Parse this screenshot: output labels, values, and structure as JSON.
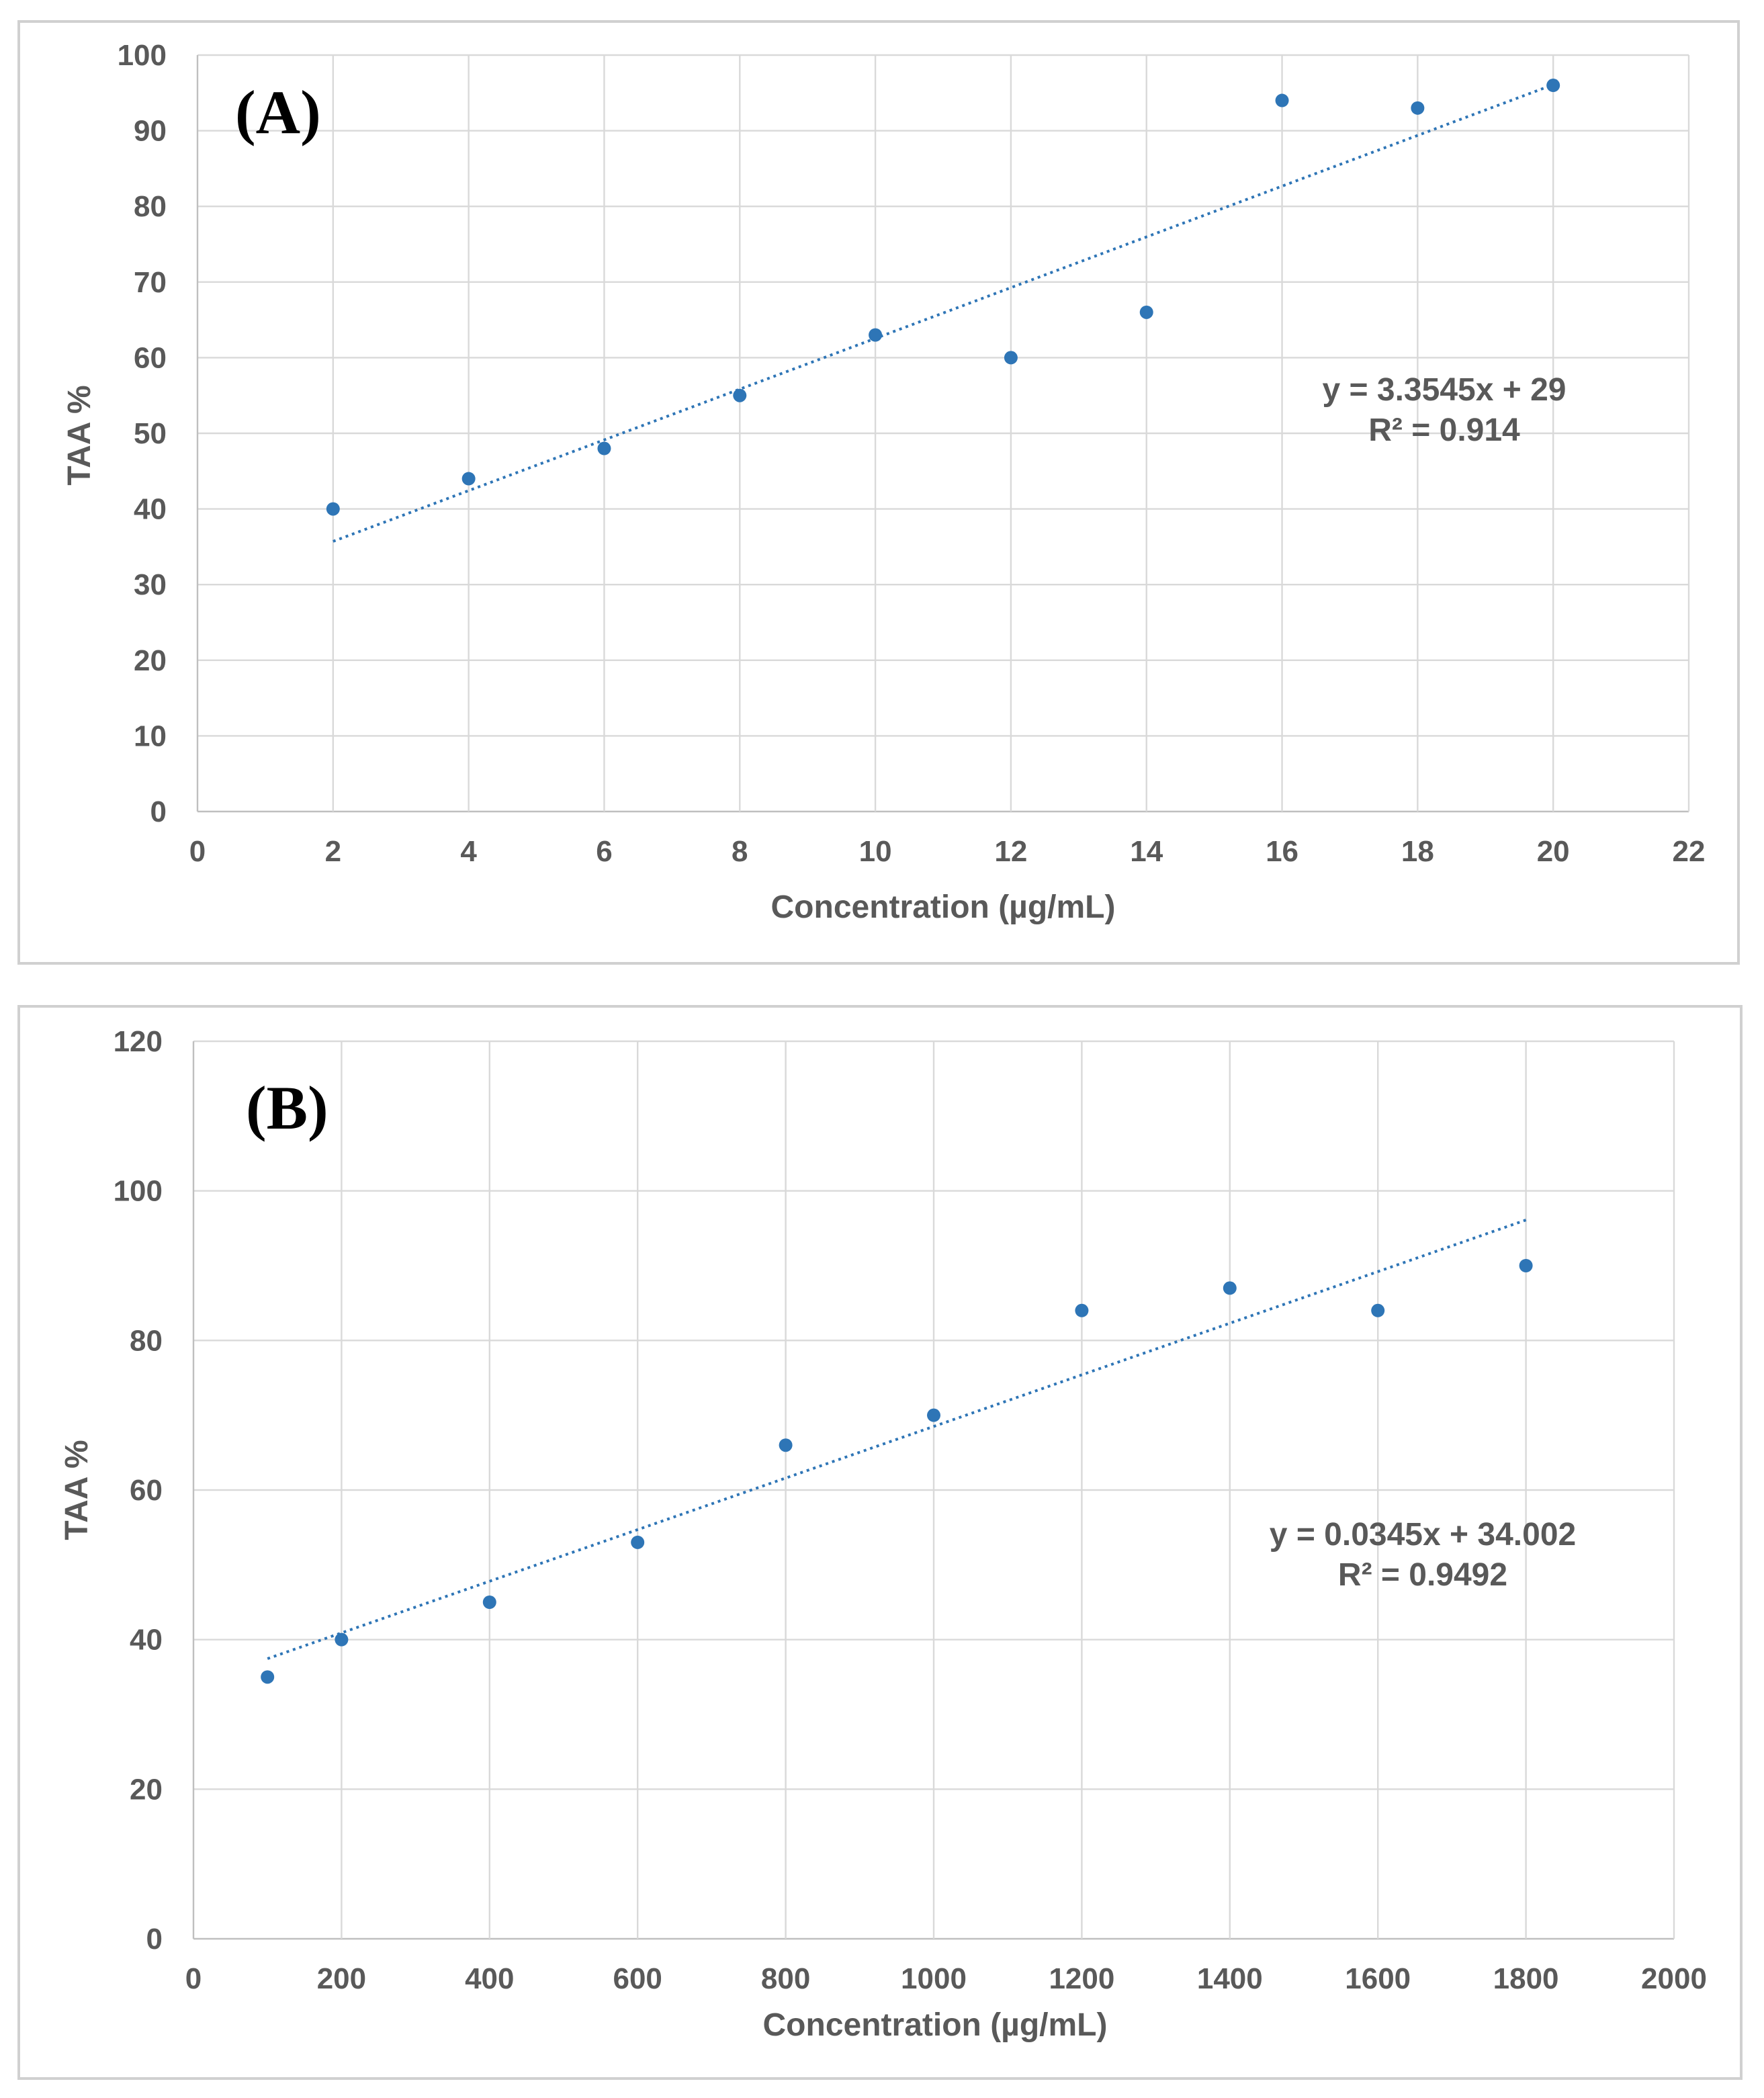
{
  "chart_data": [
    {
      "id": "A",
      "type": "scatter",
      "panel_label": "(A)",
      "xlabel": "Concentration (µg/mL)",
      "ylabel": "TAA %",
      "xlim": [
        0,
        22
      ],
      "ylim": [
        0,
        100
      ],
      "xticks": [
        0,
        2,
        4,
        6,
        8,
        10,
        12,
        14,
        16,
        18,
        20,
        22
      ],
      "yticks": [
        0,
        10,
        20,
        30,
        40,
        50,
        60,
        70,
        80,
        90,
        100
      ],
      "grid": true,
      "x": [
        2,
        4,
        6,
        8,
        10,
        12,
        14,
        16,
        18,
        20
      ],
      "y": [
        40,
        44,
        48,
        55,
        63,
        60,
        66,
        94,
        93,
        96
      ],
      "trendline": {
        "type": "linear",
        "slope": 3.3545,
        "intercept": 29,
        "x_range": [
          2,
          20
        ]
      },
      "equation": "y = 3.3545x + 29",
      "r_squared": "R² = 0.914",
      "color": "#2e75b6"
    },
    {
      "id": "B",
      "type": "scatter",
      "panel_label": "(B)",
      "xlabel": "Concentration (µg/mL)",
      "ylabel": "TAA %",
      "xlim": [
        0,
        2000
      ],
      "ylim": [
        0,
        120
      ],
      "xticks": [
        0,
        200,
        400,
        600,
        800,
        1000,
        1200,
        1400,
        1600,
        1800,
        2000
      ],
      "yticks": [
        0,
        20,
        40,
        60,
        80,
        100,
        120
      ],
      "grid": true,
      "x": [
        100,
        200,
        400,
        600,
        800,
        1000,
        1200,
        1400,
        1600,
        1800
      ],
      "y": [
        35,
        40,
        45,
        53,
        66,
        70,
        84,
        87,
        84,
        90
      ],
      "trendline": {
        "type": "linear",
        "slope": 0.0345,
        "intercept": 34.002,
        "x_range": [
          100,
          1800
        ]
      },
      "equation": "y = 0.0345x + 34.002",
      "r_squared": "R² = 0.9492",
      "color": "#2e75b6"
    }
  ]
}
